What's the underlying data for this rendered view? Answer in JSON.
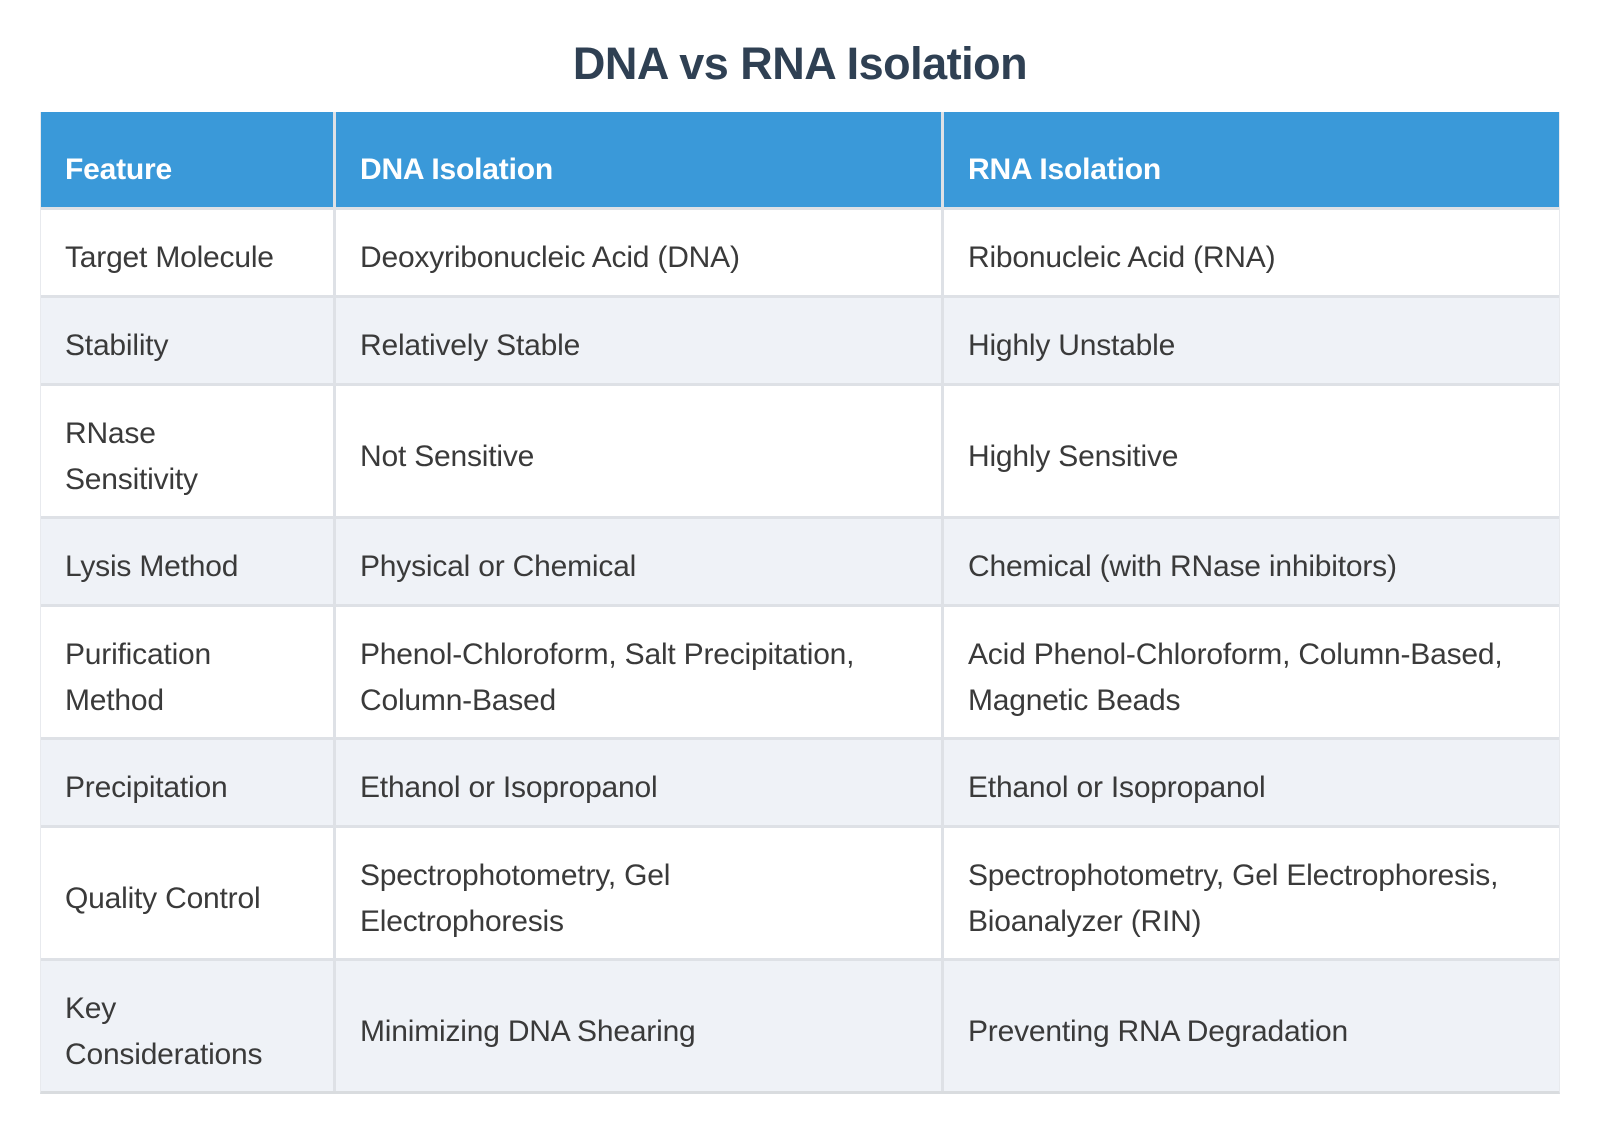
{
  "title": "DNA vs RNA Isolation",
  "theme": {
    "header_bg": "#3a99d9",
    "header_text": "#ffffff",
    "row_bg": "#ffffff",
    "row_alt_bg": "#eff2f7",
    "grid_line": "#dee1e6",
    "title_color": "#2f4053",
    "body_text": "#3a3a3a"
  },
  "table": {
    "columns": [
      {
        "key": "feature",
        "label": "Feature"
      },
      {
        "key": "dna",
        "label": "DNA Isolation"
      },
      {
        "key": "rna",
        "label": "RNA Isolation"
      }
    ],
    "rows": [
      {
        "feature": [
          "Target Molecule"
        ],
        "dna": [
          "Deoxyribonucleic Acid (DNA)"
        ],
        "rna": [
          "Ribonucleic Acid (RNA)"
        ]
      },
      {
        "feature": [
          "Stability"
        ],
        "dna": [
          "Relatively Stable"
        ],
        "rna": [
          "Highly Unstable"
        ]
      },
      {
        "feature": [
          "RNase",
          "Sensitivity"
        ],
        "dna": [
          "Not Sensitive"
        ],
        "rna": [
          "Highly Sensitive"
        ]
      },
      {
        "feature": [
          "Lysis Method"
        ],
        "dna": [
          "Physical or Chemical"
        ],
        "rna": [
          "Chemical (with RNase inhibitors)"
        ]
      },
      {
        "feature": [
          "Purification",
          "Method"
        ],
        "dna": [
          "Phenol-Chloroform, Salt Precipitation,",
          "Column-Based"
        ],
        "rna": [
          "Acid Phenol-Chloroform, Column-Based,",
          "Magnetic Beads"
        ]
      },
      {
        "feature": [
          "Precipitation"
        ],
        "dna": [
          "Ethanol or Isopropanol"
        ],
        "rna": [
          "Ethanol or Isopropanol"
        ]
      },
      {
        "feature": [
          "Quality Control"
        ],
        "dna": [
          "Spectrophotometry, Gel",
          "Electrophoresis"
        ],
        "rna": [
          "Spectrophotometry, Gel Electrophoresis,",
          "Bioanalyzer (RIN)"
        ]
      },
      {
        "feature": [
          "Key",
          "Considerations"
        ],
        "dna": [
          "Minimizing DNA Shearing"
        ],
        "rna": [
          "Preventing RNA Degradation"
        ]
      }
    ]
  }
}
